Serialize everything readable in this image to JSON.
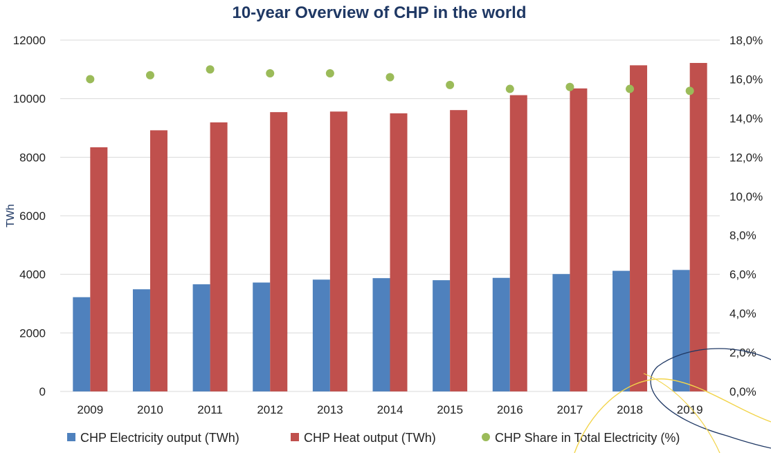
{
  "chart_data": {
    "type": "bar",
    "title": "10-year Overview of CHP in the world",
    "ylabel": "TWh",
    "y2label": "",
    "categories": [
      "2009",
      "2010",
      "2011",
      "2012",
      "2013",
      "2014",
      "2015",
      "2016",
      "2017",
      "2018",
      "2019"
    ],
    "ylim": [
      0,
      12000
    ],
    "yticks": [
      "0",
      "2000",
      "4000",
      "6000",
      "8000",
      "10000",
      "12000"
    ],
    "y2lim": [
      0,
      18
    ],
    "y2ticks": [
      "0,0%",
      "2,0%",
      "4,0%",
      "6,0%",
      "8,0%",
      "10,0%",
      "12,0%",
      "14,0%",
      "16,0%",
      "18,0%"
    ],
    "grid": true,
    "legend_position": "bottom",
    "series": [
      {
        "name": "CHP Electricity output (TWh)",
        "type": "bar",
        "axis": "left",
        "color": "#4f81bd",
        "values": [
          3220,
          3490,
          3660,
          3720,
          3820,
          3870,
          3800,
          3880,
          4010,
          4120,
          4150
        ]
      },
      {
        "name": "CHP Heat output (TWh)",
        "type": "bar",
        "axis": "left",
        "color": "#c0504d",
        "values": [
          8340,
          8920,
          9190,
          9540,
          9560,
          9500,
          9610,
          10120,
          10350,
          11140,
          11220
        ]
      },
      {
        "name": "CHP Share in Total Electricity (%)",
        "type": "scatter",
        "axis": "right",
        "color": "#9bbb59",
        "values": [
          16.0,
          16.2,
          16.5,
          16.3,
          16.3,
          16.1,
          15.7,
          15.5,
          15.6,
          15.5,
          15.4
        ]
      }
    ],
    "colors": {
      "title": "#1f3864",
      "grid": "#d9d9d9",
      "axis_title": "#1f3864"
    }
  }
}
